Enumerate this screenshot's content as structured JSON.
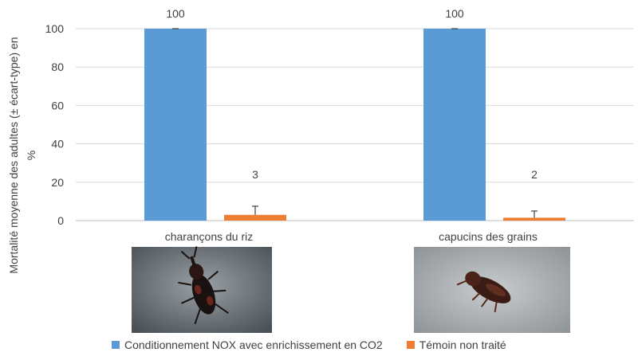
{
  "chart_data": {
    "type": "bar",
    "title": "",
    "xlabel": "",
    "ylabel_line1": "Mortalité moyenne des adultes  (± écart-type) en",
    "ylabel_line2": "%",
    "ylim": [
      0,
      100
    ],
    "yticks": [
      0,
      20,
      40,
      60,
      80,
      100
    ],
    "categories": [
      "charançons du riz",
      "capucins des grains"
    ],
    "series": [
      {
        "name": "Conditionnement NOX avec enrichissement en CO2",
        "color": "#5b9bd5",
        "values": [
          100,
          100
        ],
        "errors": [
          0,
          0
        ],
        "labels": [
          "100",
          "100"
        ]
      },
      {
        "name": "Témoin non traité",
        "color": "#ed7d31",
        "values": [
          3,
          1.5
        ],
        "errors": [
          4.5,
          3.5
        ],
        "labels": [
          "3",
          "2"
        ]
      }
    ],
    "grid": true,
    "legend_position": "bottom",
    "images": [
      {
        "category": "charançons du riz",
        "icon": "rice-weevil-photo"
      },
      {
        "category": "capucins des grains",
        "icon": "lesser-grain-borer-photo"
      }
    ]
  }
}
